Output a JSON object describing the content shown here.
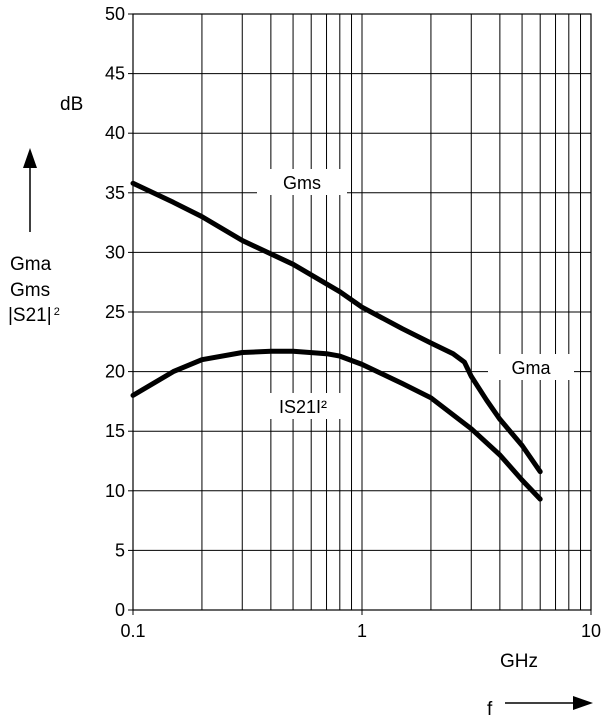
{
  "chart_data": {
    "type": "line",
    "x_scale": "log",
    "xlim": [
      0.1,
      10
    ],
    "ylim": [
      0,
      50
    ],
    "grid": true,
    "x_ticks": [
      "0.1",
      "1",
      "10"
    ],
    "y_ticks": [
      "0",
      "5",
      "10",
      "15",
      "20",
      "25",
      "30",
      "35",
      "40",
      "45",
      "50"
    ],
    "xlabel": "GHz",
    "x_quantity": "f",
    "ylabel_unit": "dB",
    "ylabel_lines": [
      "Gma",
      "Gms",
      "|S21|"
    ],
    "ylabel_sup": "2",
    "series": [
      {
        "name": "Gms / Gma",
        "labels": [
          "Gms",
          "Gma"
        ],
        "x": [
          0.1,
          0.15,
          0.2,
          0.3,
          0.5,
          0.8,
          1,
          1.5,
          2,
          2.5,
          2.8,
          3,
          3.5,
          4,
          5,
          6
        ],
        "y": [
          35.8,
          34.2,
          33,
          31,
          29,
          26.7,
          25.4,
          23.6,
          22.4,
          21.5,
          20.8,
          19.6,
          17.6,
          16,
          13.8,
          11.6
        ]
      },
      {
        "name": "IS21I²",
        "labels": [
          "IS21I²"
        ],
        "x": [
          0.1,
          0.15,
          0.2,
          0.3,
          0.4,
          0.5,
          0.7,
          0.8,
          1,
          1.5,
          2,
          3,
          4,
          5,
          6
        ],
        "y": [
          18,
          20,
          21,
          21.6,
          21.7,
          21.7,
          21.5,
          21.3,
          20.6,
          19,
          17.8,
          15.2,
          13,
          10.9,
          9.3
        ]
      }
    ]
  }
}
